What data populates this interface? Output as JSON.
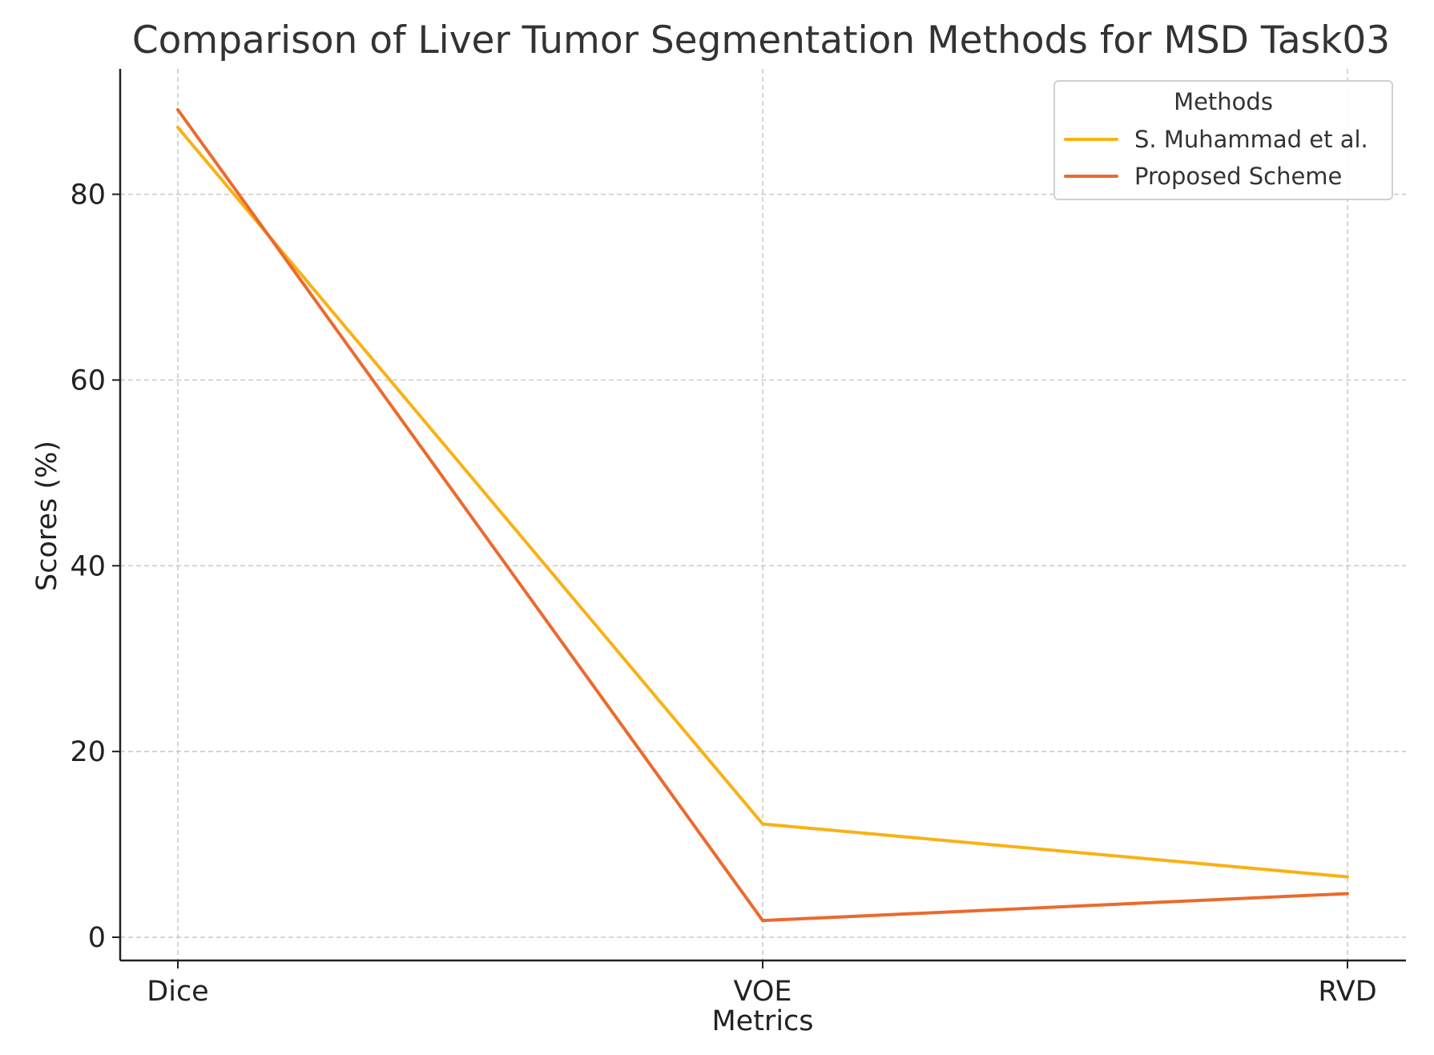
{
  "chart_data": {
    "type": "line",
    "title": "Comparison of Liver Tumor Segmentation Methods for MSD Task03",
    "xlabel": "Metrics",
    "ylabel": "Scores (%)",
    "categories": [
      "Dice",
      "VOE",
      "RVD"
    ],
    "ylim": [
      -2.5,
      93.5
    ],
    "yticks": [
      0,
      20,
      40,
      60,
      80
    ],
    "grid": true,
    "legend": {
      "title": "Methods",
      "placement": "top-right"
    },
    "series": [
      {
        "name": "S. Muhammad et al.",
        "color": "#f9b115",
        "values": [
          87.2,
          12.2,
          6.5
        ]
      },
      {
        "name": "Proposed Scheme",
        "color": "#eb6a2d",
        "values": [
          89.1,
          1.8,
          4.7
        ]
      }
    ]
  }
}
